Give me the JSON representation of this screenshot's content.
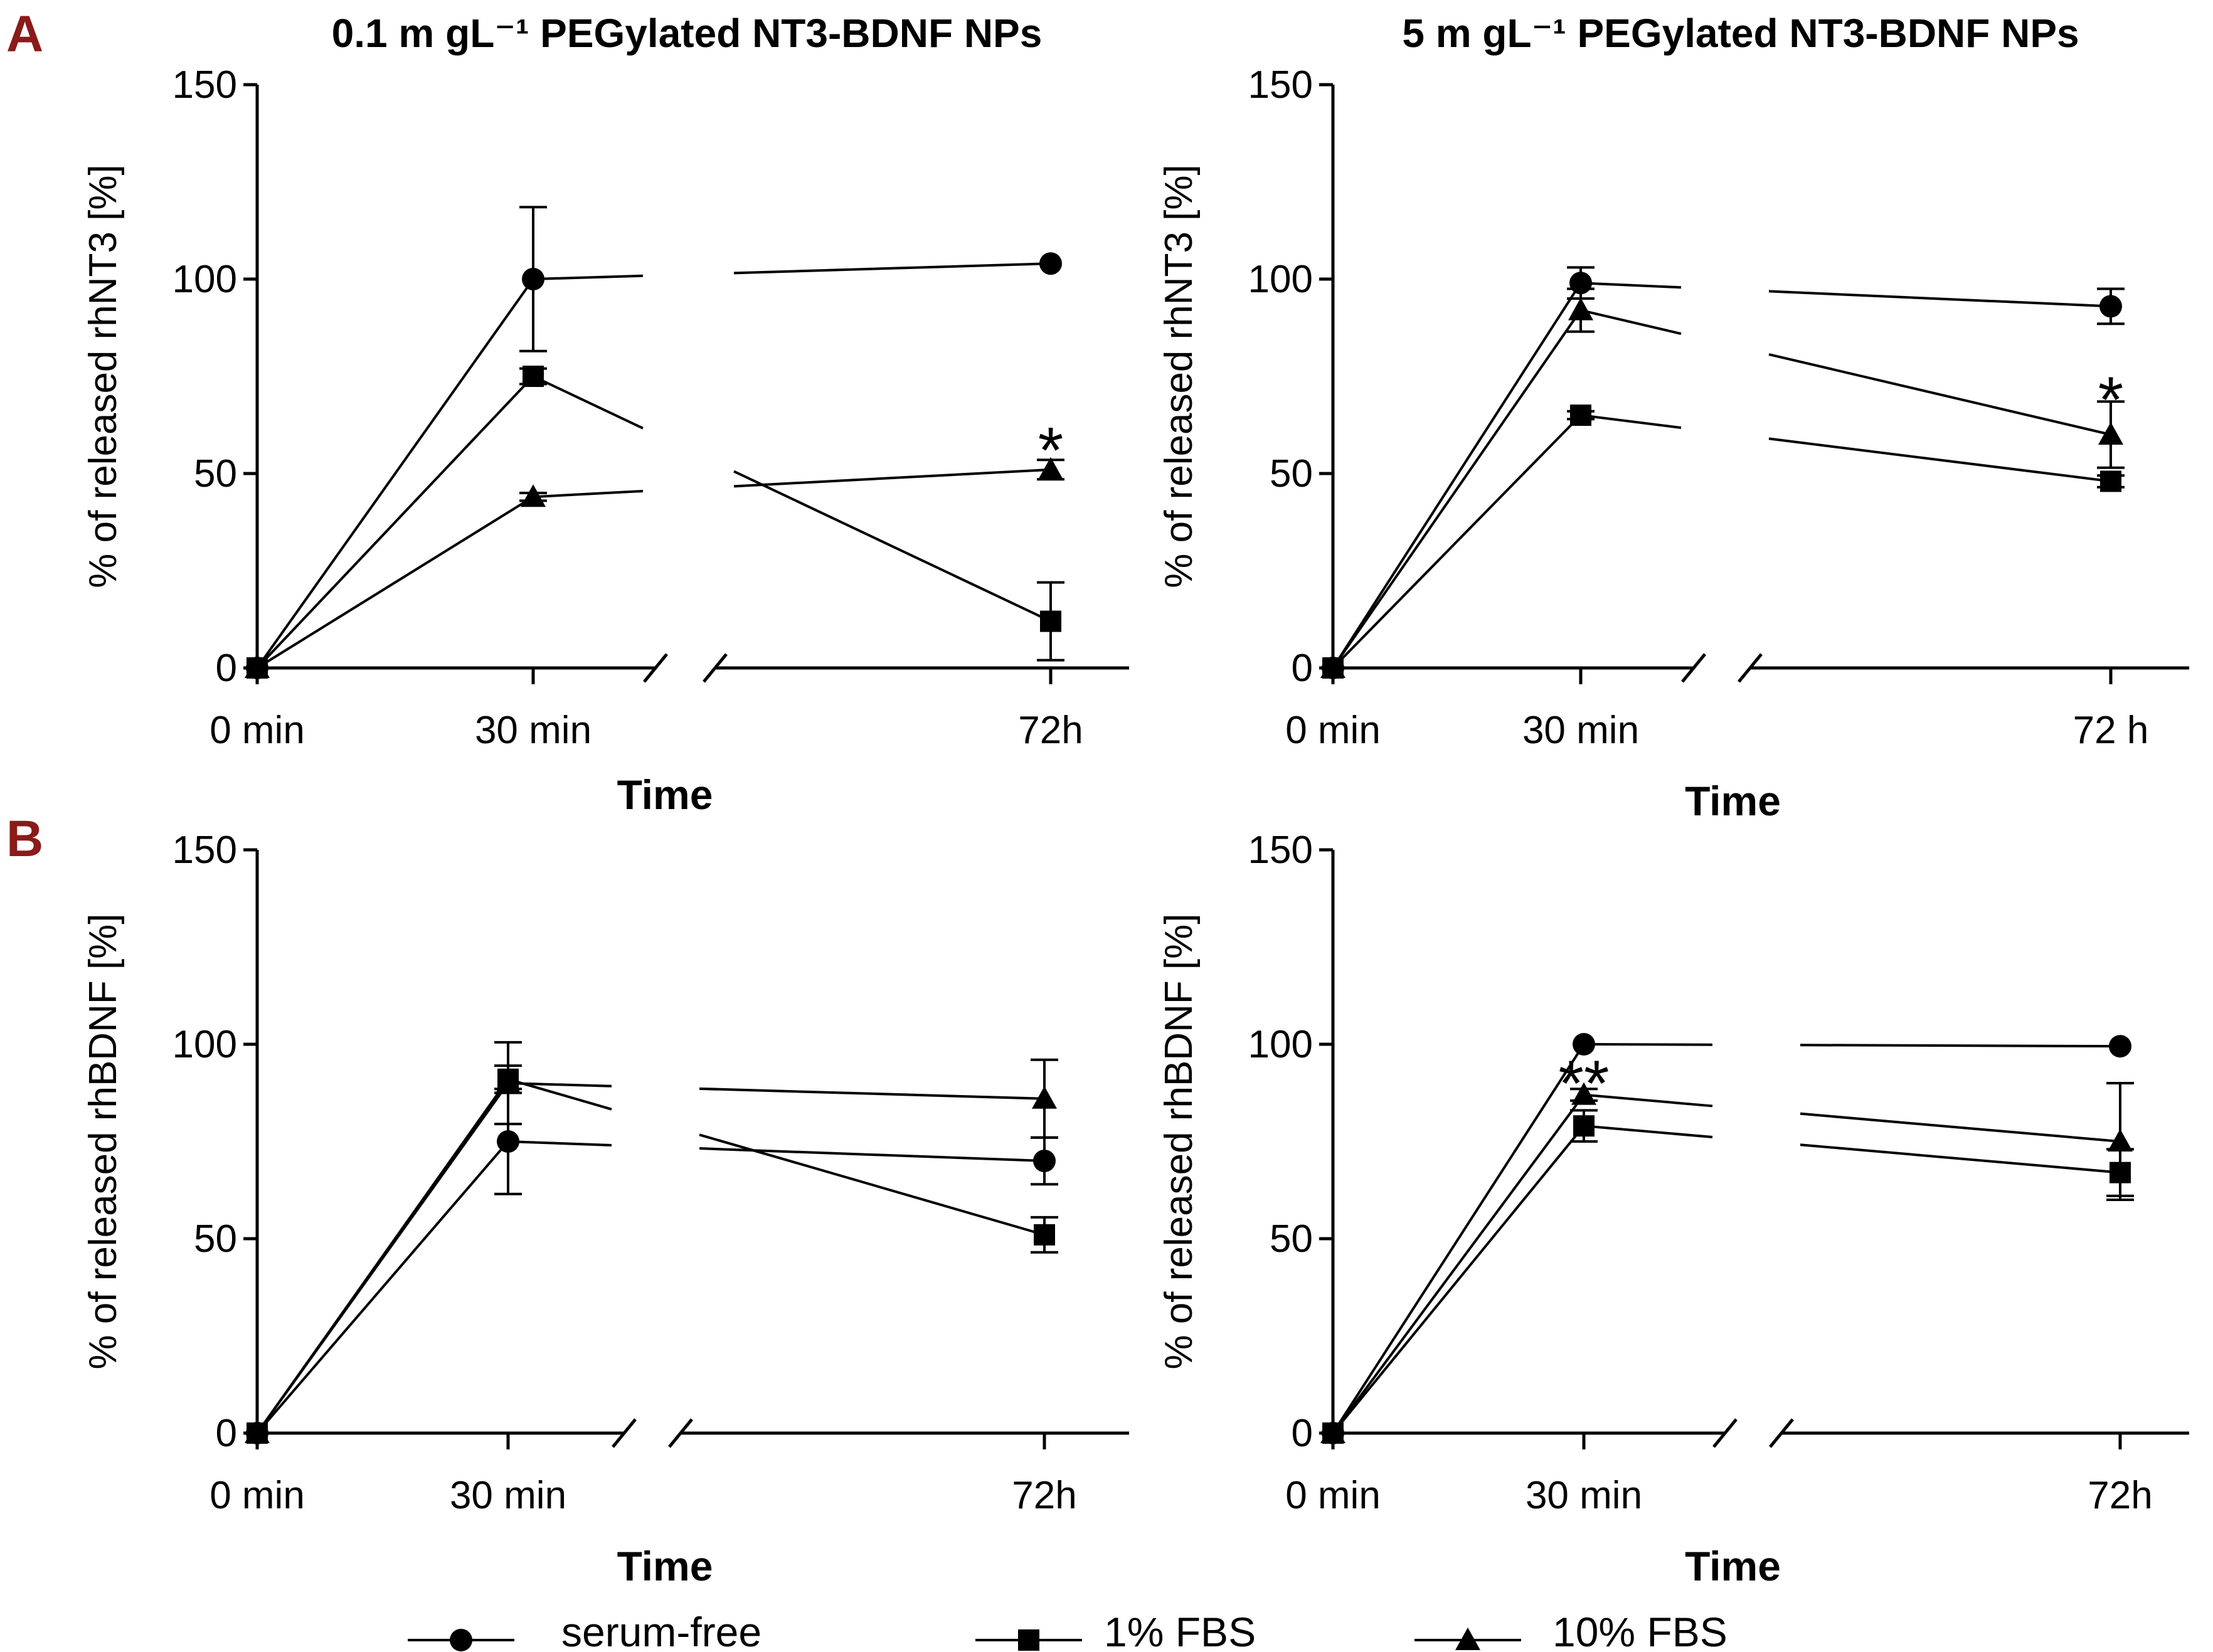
{
  "figure": {
    "panel_labels": [
      "A",
      "B"
    ],
    "legend": [
      {
        "label": "serum-free",
        "marker": "circle"
      },
      {
        "label": "1% FBS",
        "marker": "square"
      },
      {
        "label": "10% FBS",
        "marker": "triangle"
      }
    ]
  },
  "chart_data": [
    {
      "type": "line",
      "panel": "A",
      "title": "0.1 m gL⁻¹ PEGylated NT3-BDNF NPs",
      "xlabel": "Time",
      "ylabel": "% of released rhNT3 [%]",
      "categories": [
        "0 min",
        "30 min",
        "72h"
      ],
      "ylim": [
        0,
        150
      ],
      "yticks": [
        0,
        50,
        100,
        150
      ],
      "axis_break": true,
      "series": [
        {
          "name": "serum-free",
          "marker": "circle",
          "values": [
            0,
            100,
            104
          ],
          "errors": [
            0,
            18.5,
            0
          ]
        },
        {
          "name": "1% FBS",
          "marker": "square",
          "values": [
            0,
            75,
            12
          ],
          "errors": [
            0,
            2,
            10
          ]
        },
        {
          "name": "10% FBS",
          "marker": "triangle",
          "values": [
            0,
            44,
            51
          ],
          "errors": [
            0,
            1,
            2.5
          ]
        }
      ],
      "annotations": [
        {
          "text": "*",
          "category": "72h",
          "y": 57
        }
      ]
    },
    {
      "type": "line",
      "panel": "A",
      "title": "5 m gL⁻¹ PEGylated NT3-BDNF NPs",
      "xlabel": "Time",
      "ylabel": "% of released rhNT3 [%]",
      "categories": [
        "0 min",
        "30 min",
        "72 h"
      ],
      "ylim": [
        0,
        150
      ],
      "yticks": [
        0,
        50,
        100,
        150
      ],
      "axis_break": true,
      "series": [
        {
          "name": "serum-free",
          "marker": "circle",
          "values": [
            0,
            99,
            93
          ],
          "errors": [
            0,
            4,
            4.5
          ]
        },
        {
          "name": "1% FBS",
          "marker": "square",
          "values": [
            0,
            65,
            48
          ],
          "errors": [
            0,
            1,
            1.5
          ]
        },
        {
          "name": "10% FBS",
          "marker": "triangle",
          "values": [
            0,
            92,
            60
          ],
          "errors": [
            0,
            5.5,
            8.5
          ]
        }
      ],
      "annotations": [
        {
          "text": "*",
          "category": "72 h",
          "y": 70
        }
      ]
    },
    {
      "type": "line",
      "panel": "B",
      "title": "",
      "xlabel": "Time",
      "ylabel": "% of released rhBDNF [%]",
      "categories": [
        "0 min",
        "30 min",
        "72h"
      ],
      "ylim": [
        0,
        150
      ],
      "yticks": [
        0,
        50,
        100,
        150
      ],
      "axis_break": true,
      "series": [
        {
          "name": "serum-free",
          "marker": "circle",
          "values": [
            0,
            75,
            70
          ],
          "errors": [
            0,
            13.5,
            6
          ]
        },
        {
          "name": "1% FBS",
          "marker": "square",
          "values": [
            0,
            91,
            51
          ],
          "errors": [
            0,
            3.5,
            4.5
          ]
        },
        {
          "name": "10% FBS",
          "marker": "triangle",
          "values": [
            0,
            90,
            86
          ],
          "errors": [
            0,
            10.5,
            10
          ]
        }
      ],
      "annotations": []
    },
    {
      "type": "line",
      "panel": "B",
      "title": "",
      "xlabel": "Time",
      "ylabel": "% of released rhBDNF [%]",
      "categories": [
        "0 min",
        "30 min",
        "72h"
      ],
      "ylim": [
        0,
        150
      ],
      "yticks": [
        0,
        50,
        100,
        150
      ],
      "axis_break": true,
      "series": [
        {
          "name": "serum-free",
          "marker": "circle",
          "values": [
            0,
            100,
            99.5
          ],
          "errors": [
            0,
            0.5,
            0.5
          ]
        },
        {
          "name": "1% FBS",
          "marker": "square",
          "values": [
            0,
            79,
            67
          ],
          "errors": [
            0,
            4,
            6
          ]
        },
        {
          "name": "10% FBS",
          "marker": "triangle",
          "values": [
            0,
            87,
            75
          ],
          "errors": [
            0,
            1.5,
            15
          ]
        }
      ],
      "annotations": [
        {
          "text": "**",
          "category": "30 min",
          "y": 91
        }
      ]
    }
  ]
}
